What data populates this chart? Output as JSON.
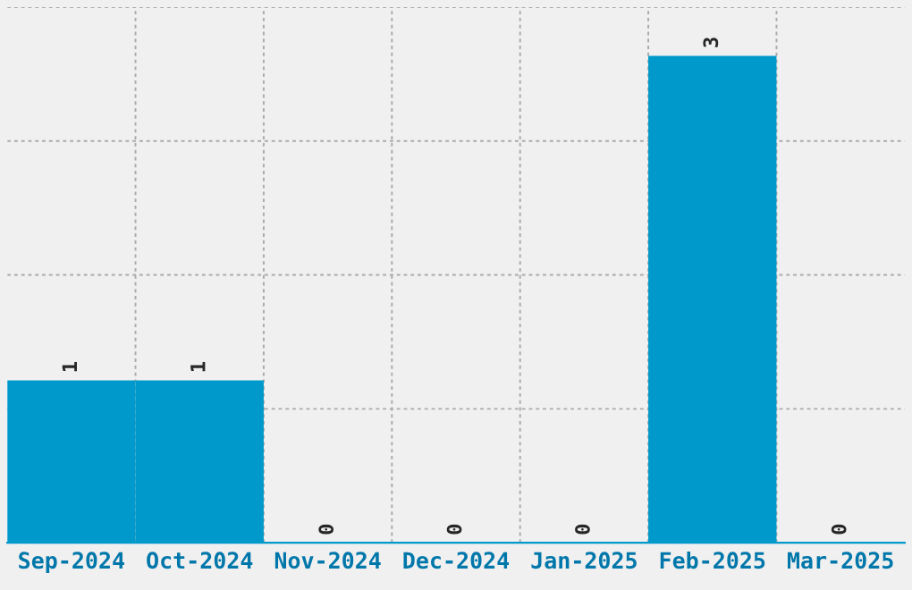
{
  "chart_data": {
    "type": "bar",
    "categories": [
      "Sep-2024",
      "Oct-2024",
      "Nov-2024",
      "Dec-2024",
      "Jan-2025",
      "Feb-2025",
      "Mar-2025"
    ],
    "values": [
      1,
      1,
      0,
      0,
      0,
      3,
      0
    ],
    "color": "#0099cc",
    "data_labels": true,
    "ylim": [
      0,
      3.3
    ],
    "yticks": [
      {
        "value": 0,
        "label": null
      },
      {
        "value": 0.825,
        "label": null
      },
      {
        "value": 1.65,
        "label": null
      },
      {
        "value": 2.475,
        "label": null
      },
      {
        "value": 3.3,
        "label": null
      }
    ],
    "tick_labels": "x",
    "grid": true
  }
}
